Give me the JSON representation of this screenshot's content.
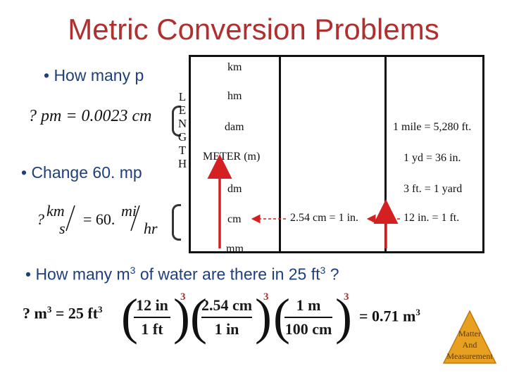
{
  "title": "Metric Conversion Problems",
  "bullets": {
    "q1": "• How many p",
    "q2": "• Change 60. mp",
    "q3_prefix": "• How many m",
    "q3_sup1": "3",
    "q3_mid": " of water are there in 25 ft",
    "q3_sup2": "3",
    "q3_suffix": " ?"
  },
  "equations": {
    "pm": "? pm = 0.0023 cm",
    "rate_lhs_prefix": "?",
    "rate_lhs_num": "km",
    "rate_lhs_den": "s",
    "rate_eq": "= 60.",
    "rate_rhs_num": "mi",
    "rate_rhs_den": "hr"
  },
  "length_label": [
    "L",
    "E",
    "N",
    "G",
    "T",
    "H"
  ],
  "units": {
    "km": "km",
    "hm": "hm",
    "dam": "dam",
    "meter": "METER (m)",
    "dm": "dm",
    "cm": "cm",
    "mm": "mm"
  },
  "conversions": {
    "mile": "1 mile = 5,280 ft.",
    "yd": "1 yd = 36 in.",
    "ft_yard": "3 ft. = 1 yard",
    "cm_in": "2.54 cm = 1 in.",
    "in_ft": "12 in. = 1 ft."
  },
  "volume_eq": {
    "lhs": "? m",
    "lhs_sup": "3",
    "eq_val": " = 25 ft",
    "eq_sup": "3",
    "f1_num": "12 in",
    "f1_den": "1 ft",
    "f2_num": "2.54 cm",
    "f2_den": "1 in",
    "f3_num": "1 m",
    "f3_den": "100 cm",
    "cube": "3",
    "result": "=  0.71 m",
    "result_sup": "3"
  },
  "logo": {
    "line1": "Matter",
    "line2": "And",
    "line3": "Measurement"
  },
  "colors": {
    "title": "#b03030",
    "bullet": "#1f3f7a",
    "arrow": "#d42020",
    "logo": "#e8a020"
  }
}
